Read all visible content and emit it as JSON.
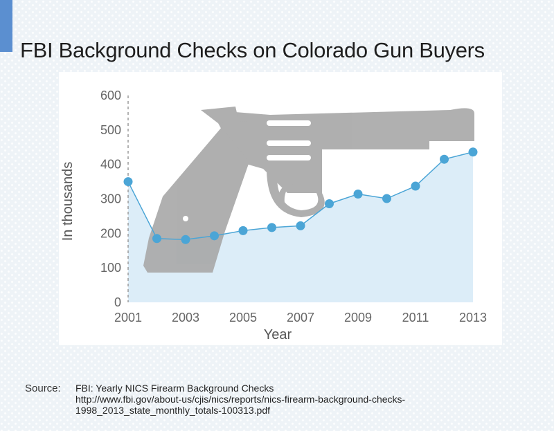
{
  "title": "FBI Background Checks on Colorado Gun Buyers",
  "source": {
    "label": "Source:",
    "lines": [
      "FBI: Yearly NICS Firearm Background Checks",
      "http://www.fbi.gov/about-us/cjis/nics/reports/nics-firearm-background-checks-",
      "1998_2013_state_monthly_totals-100313.pdf"
    ]
  },
  "colors": {
    "line": "#4ba5d6",
    "area": "#dcedf8",
    "gun": "#a9a9a9",
    "accent": "#5b8fd0"
  },
  "chart_data": {
    "type": "area",
    "title": "FBI Background Checks on Colorado Gun Buyers",
    "xlabel": "Year",
    "ylabel": "In thousands",
    "x": [
      2001,
      2002,
      2003,
      2004,
      2005,
      2006,
      2007,
      2008,
      2009,
      2010,
      2011,
      2012,
      2013
    ],
    "values": [
      350,
      185,
      182,
      193,
      208,
      217,
      222,
      286,
      314,
      301,
      337,
      415,
      436
    ],
    "xticks": [
      "2001",
      "2003",
      "2005",
      "2007",
      "2009",
      "2011",
      "2013"
    ],
    "yticks": [
      0,
      100,
      200,
      300,
      400,
      500,
      600
    ],
    "ylim": [
      0,
      600
    ],
    "xlim": [
      2001,
      2013
    ],
    "grid": false,
    "decoration": "revolver-silhouette"
  }
}
